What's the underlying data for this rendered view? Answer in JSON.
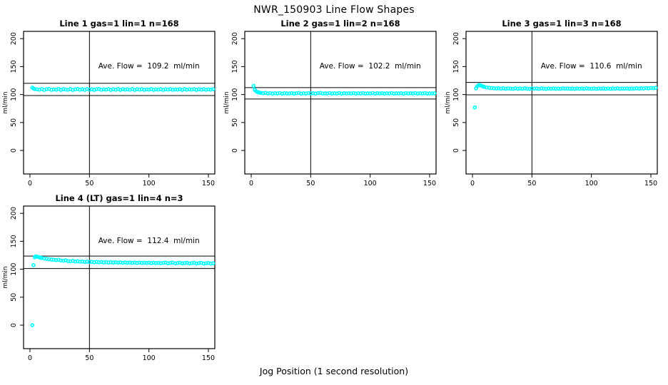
{
  "main": {
    "title": "NWR_150903  Line Flow Shapes",
    "xlabel": "Jog Position (1 second resolution)"
  },
  "style": {
    "point_color": "#00ffff",
    "axis_color": "#000000",
    "background": "#ffffff"
  },
  "chart_data": [
    {
      "type": "scatter",
      "title": "Line 1 gas=1 lin=1 n=168",
      "annotation": "Ave. Flow =  109.2  ml/min",
      "ave_flow": 109.2,
      "gas": 1,
      "lin": 1,
      "n": 168,
      "ylabel": "ml/min",
      "x_ticks": [
        0,
        50,
        100,
        150
      ],
      "y_ticks": [
        0,
        50,
        100,
        150,
        200
      ],
      "xlim": [
        -5.4,
        155.4
      ],
      "ylim": [
        -42,
        213
      ],
      "vline_x": 50,
      "hlines": [
        120.1,
        98.3
      ],
      "grid": false,
      "points": [
        [
          2,
          112.5
        ],
        [
          3,
          110.6
        ],
        [
          4,
          109.8
        ],
        [
          6,
          109.4
        ],
        [
          8,
          108.7
        ],
        [
          10,
          109.9
        ],
        [
          12,
          108.3
        ],
        [
          14,
          109.5
        ],
        [
          16,
          110.1
        ],
        [
          18,
          108.5
        ],
        [
          20,
          109.2
        ],
        [
          22,
          108.8
        ],
        [
          24,
          110.0
        ],
        [
          26,
          108.4
        ],
        [
          28,
          109.6
        ],
        [
          30,
          109.0
        ],
        [
          32,
          108.6
        ],
        [
          34,
          109.8
        ],
        [
          36,
          108.3
        ],
        [
          38,
          109.3
        ],
        [
          40,
          110.0
        ],
        [
          42,
          108.7
        ],
        [
          44,
          109.5
        ],
        [
          46,
          108.4
        ],
        [
          48,
          109.9
        ],
        [
          50,
          108.8
        ],
        [
          52,
          109.3
        ],
        [
          54,
          108.5
        ],
        [
          56,
          109.7
        ],
        [
          58,
          110.0
        ],
        [
          60,
          108.6
        ],
        [
          62,
          109.2
        ],
        [
          64,
          108.9
        ],
        [
          66,
          109.8
        ],
        [
          68,
          108.4
        ],
        [
          70,
          109.4
        ],
        [
          72,
          108.7
        ],
        [
          74,
          110.0
        ],
        [
          76,
          108.5
        ],
        [
          78,
          109.6
        ],
        [
          80,
          108.9
        ],
        [
          82,
          109.3
        ],
        [
          84,
          108.6
        ],
        [
          86,
          109.9
        ],
        [
          88,
          108.4
        ],
        [
          90,
          109.5
        ],
        [
          92,
          108.8
        ],
        [
          94,
          109.7
        ],
        [
          96,
          108.5
        ],
        [
          98,
          109.2
        ],
        [
          100,
          108.9
        ],
        [
          102,
          109.8
        ],
        [
          104,
          108.4
        ],
        [
          106,
          109.4
        ],
        [
          108,
          108.8
        ],
        [
          110,
          109.6
        ],
        [
          112,
          108.5
        ],
        [
          114,
          109.3
        ],
        [
          116,
          108.9
        ],
        [
          118,
          109.7
        ],
        [
          120,
          108.6
        ],
        [
          122,
          109.2
        ],
        [
          124,
          108.8
        ],
        [
          126,
          109.5
        ],
        [
          128,
          108.4
        ],
        [
          130,
          109.8
        ],
        [
          132,
          108.7
        ],
        [
          134,
          109.3
        ],
        [
          136,
          108.9
        ],
        [
          138,
          109.6
        ],
        [
          140,
          108.5
        ],
        [
          142,
          109.4
        ],
        [
          144,
          108.8
        ],
        [
          146,
          109.7
        ],
        [
          148,
          108.6
        ],
        [
          150,
          109.2
        ],
        [
          152,
          108.9
        ],
        [
          154,
          109.5
        ]
      ]
    },
    {
      "type": "scatter",
      "title": "Line 2 gas=1 lin=2 n=168",
      "annotation": "Ave. Flow =  102.2  ml/min",
      "ave_flow": 102.2,
      "gas": 1,
      "lin": 2,
      "n": 168,
      "ylabel": "ml/min",
      "x_ticks": [
        0,
        50,
        100,
        150
      ],
      "y_ticks": [
        0,
        50,
        100,
        150,
        200
      ],
      "xlim": [
        -5.4,
        155.4
      ],
      "ylim": [
        -42,
        213
      ],
      "vline_x": 50,
      "hlines": [
        112.4,
        92.0
      ],
      "grid": false,
      "points": [
        [
          2,
          115.5
        ],
        [
          3,
          108.6
        ],
        [
          4,
          106.2
        ],
        [
          5,
          104.9
        ],
        [
          6,
          104.0
        ],
        [
          7,
          103.4
        ],
        [
          8,
          103.0
        ],
        [
          10,
          102.6
        ],
        [
          12,
          102.9
        ],
        [
          14,
          102.1
        ],
        [
          16,
          102.7
        ],
        [
          18,
          101.8
        ],
        [
          20,
          102.4
        ],
        [
          22,
          102.0
        ],
        [
          24,
          102.8
        ],
        [
          26,
          101.7
        ],
        [
          28,
          102.5
        ],
        [
          30,
          102.1
        ],
        [
          32,
          101.9
        ],
        [
          34,
          102.6
        ],
        [
          36,
          101.8
        ],
        [
          38,
          102.3
        ],
        [
          40,
          102.9
        ],
        [
          42,
          101.7
        ],
        [
          44,
          102.4
        ],
        [
          46,
          101.9
        ],
        [
          48,
          102.7
        ],
        [
          50,
          102.0
        ],
        [
          52,
          102.3
        ],
        [
          54,
          101.8
        ],
        [
          56,
          102.6
        ],
        [
          58,
          102.9
        ],
        [
          60,
          101.9
        ],
        [
          62,
          102.2
        ],
        [
          64,
          102.0
        ],
        [
          66,
          102.7
        ],
        [
          68,
          101.8
        ],
        [
          70,
          102.4
        ],
        [
          72,
          102.0
        ],
        [
          74,
          102.8
        ],
        [
          76,
          101.7
        ],
        [
          78,
          102.5
        ],
        [
          80,
          102.0
        ],
        [
          82,
          102.3
        ],
        [
          84,
          101.9
        ],
        [
          86,
          102.7
        ],
        [
          88,
          101.8
        ],
        [
          90,
          102.4
        ],
        [
          92,
          102.0
        ],
        [
          94,
          102.6
        ],
        [
          96,
          101.8
        ],
        [
          98,
          102.2
        ],
        [
          100,
          102.0
        ],
        [
          102,
          102.7
        ],
        [
          104,
          101.7
        ],
        [
          106,
          102.4
        ],
        [
          108,
          102.0
        ],
        [
          110,
          102.5
        ],
        [
          112,
          101.8
        ],
        [
          114,
          102.3
        ],
        [
          116,
          102.0
        ],
        [
          118,
          102.6
        ],
        [
          120,
          101.8
        ],
        [
          122,
          102.2
        ],
        [
          124,
          102.0
        ],
        [
          126,
          102.5
        ],
        [
          128,
          101.7
        ],
        [
          130,
          102.7
        ],
        [
          132,
          101.9
        ],
        [
          134,
          102.3
        ],
        [
          136,
          102.0
        ],
        [
          138,
          102.6
        ],
        [
          140,
          101.8
        ],
        [
          142,
          102.4
        ],
        [
          144,
          102.0
        ],
        [
          146,
          102.6
        ],
        [
          148,
          101.8
        ],
        [
          150,
          102.2
        ],
        [
          152,
          102.0
        ],
        [
          154,
          102.4
        ]
      ]
    },
    {
      "type": "scatter",
      "title": "Line 3 gas=1 lin=3 n=168",
      "annotation": "Ave. Flow =  110.6  ml/min",
      "ave_flow": 110.6,
      "gas": 1,
      "lin": 3,
      "n": 168,
      "ylabel": "ml/min",
      "x_ticks": [
        0,
        50,
        100,
        150
      ],
      "y_ticks": [
        0,
        50,
        100,
        150,
        200
      ],
      "xlim": [
        -5.4,
        155.4
      ],
      "ylim": [
        -42,
        213
      ],
      "vline_x": 50,
      "hlines": [
        121.7,
        99.5
      ],
      "grid": false,
      "points": [
        [
          2,
          77
        ],
        [
          3,
          111.2
        ],
        [
          4,
          114.6
        ],
        [
          5,
          116.6
        ],
        [
          6,
          117.0
        ],
        [
          7,
          116.3
        ],
        [
          8,
          115.4
        ],
        [
          9,
          114.5
        ],
        [
          10,
          113.7
        ],
        [
          12,
          112.8
        ],
        [
          14,
          112.2
        ],
        [
          16,
          111.7
        ],
        [
          18,
          111.3
        ],
        [
          20,
          111.0
        ],
        [
          22,
          111.4
        ],
        [
          24,
          110.6
        ],
        [
          26,
          111.2
        ],
        [
          28,
          110.4
        ],
        [
          30,
          111.0
        ],
        [
          32,
          110.7
        ],
        [
          34,
          110.3
        ],
        [
          36,
          111.1
        ],
        [
          38,
          110.5
        ],
        [
          40,
          110.9
        ],
        [
          42,
          110.4
        ],
        [
          44,
          111.2
        ],
        [
          46,
          110.6
        ],
        [
          48,
          110.3
        ],
        [
          50,
          111.0
        ],
        [
          52,
          110.5
        ],
        [
          54,
          110.8
        ],
        [
          56,
          110.3
        ],
        [
          58,
          111.1
        ],
        [
          60,
          110.6
        ],
        [
          62,
          110.2
        ],
        [
          64,
          110.9
        ],
        [
          66,
          110.5
        ],
        [
          68,
          111.0
        ],
        [
          70,
          110.4
        ],
        [
          72,
          110.8
        ],
        [
          74,
          110.3
        ],
        [
          76,
          111.1
        ],
        [
          78,
          110.6
        ],
        [
          80,
          110.9
        ],
        [
          82,
          110.4
        ],
        [
          84,
          110.7
        ],
        [
          86,
          110.2
        ],
        [
          88,
          111.0
        ],
        [
          90,
          110.5
        ],
        [
          92,
          110.8
        ],
        [
          94,
          110.3
        ],
        [
          96,
          111.1
        ],
        [
          98,
          110.6
        ],
        [
          100,
          110.4
        ],
        [
          102,
          110.9
        ],
        [
          104,
          110.3
        ],
        [
          106,
          110.7
        ],
        [
          108,
          110.5
        ],
        [
          110,
          111.0
        ],
        [
          112,
          110.4
        ],
        [
          114,
          110.8
        ],
        [
          116,
          110.3
        ],
        [
          118,
          110.9
        ],
        [
          120,
          110.5
        ],
        [
          122,
          111.1
        ],
        [
          124,
          110.4
        ],
        [
          126,
          110.8
        ],
        [
          128,
          110.6
        ],
        [
          130,
          111.0
        ],
        [
          132,
          110.4
        ],
        [
          134,
          110.9
        ],
        [
          136,
          110.6
        ],
        [
          138,
          111.2
        ],
        [
          140,
          110.7
        ],
        [
          142,
          111.3
        ],
        [
          144,
          110.9
        ],
        [
          146,
          111.6
        ],
        [
          148,
          111.2
        ],
        [
          150,
          111.8
        ],
        [
          152,
          111.4
        ],
        [
          154,
          112.0
        ]
      ]
    },
    {
      "type": "scatter",
      "title": "Line 4 (LT) gas=1 lin=4 n=3",
      "annotation": "Ave. Flow =  112.4  ml/min",
      "ave_flow": 112.4,
      "gas": 1,
      "lin": 4,
      "n": 3,
      "ylabel": "ml/min",
      "x_ticks": [
        0,
        50,
        100,
        150
      ],
      "y_ticks": [
        0,
        50,
        100,
        150,
        200
      ],
      "xlim": [
        -5.4,
        155.4
      ],
      "ylim": [
        -42,
        213
      ],
      "vline_x": 50,
      "hlines": [
        123.6,
        101.2
      ],
      "grid": false,
      "points": [
        [
          2,
          0
        ],
        [
          3,
          107.5
        ],
        [
          4,
          121.5
        ],
        [
          5,
          123.0
        ],
        [
          6,
          122.4
        ],
        [
          7,
          121.8
        ],
        [
          8,
          121.2
        ],
        [
          9,
          120.7
        ],
        [
          10,
          120.2
        ],
        [
          12,
          119.3
        ],
        [
          14,
          118.6
        ],
        [
          16,
          118.0
        ],
        [
          18,
          117.4
        ],
        [
          20,
          116.9
        ],
        [
          22,
          116.4
        ],
        [
          24,
          116.8
        ],
        [
          26,
          115.6
        ],
        [
          28,
          115.2
        ],
        [
          30,
          115.8
        ],
        [
          32,
          114.6
        ],
        [
          34,
          114.2
        ],
        [
          36,
          114.9
        ],
        [
          38,
          113.8
        ],
        [
          40,
          114.4
        ],
        [
          42,
          113.3
        ],
        [
          44,
          113.9
        ],
        [
          46,
          113.0
        ],
        [
          48,
          113.6
        ],
        [
          50,
          112.8
        ],
        [
          52,
          113.4
        ],
        [
          54,
          112.5
        ],
        [
          56,
          113.2
        ],
        [
          58,
          112.3
        ],
        [
          60,
          113.0
        ],
        [
          62,
          112.1
        ],
        [
          64,
          112.8
        ],
        [
          66,
          112.0
        ],
        [
          68,
          112.7
        ],
        [
          70,
          111.8
        ],
        [
          72,
          112.5
        ],
        [
          74,
          111.7
        ],
        [
          76,
          112.4
        ],
        [
          78,
          111.6
        ],
        [
          80,
          112.2
        ],
        [
          82,
          111.5
        ],
        [
          84,
          112.1
        ],
        [
          86,
          111.4
        ],
        [
          88,
          112.0
        ],
        [
          90,
          111.3
        ],
        [
          92,
          111.9
        ],
        [
          94,
          111.2
        ],
        [
          96,
          111.8
        ],
        [
          98,
          111.1
        ],
        [
          100,
          111.7
        ],
        [
          102,
          111.0
        ],
        [
          104,
          111.6
        ],
        [
          106,
          110.9
        ],
        [
          108,
          111.5
        ],
        [
          110,
          110.8
        ],
        [
          112,
          111.4
        ],
        [
          114,
          111.9
        ],
        [
          116,
          110.7
        ],
        [
          118,
          111.3
        ],
        [
          120,
          111.8
        ],
        [
          122,
          110.6
        ],
        [
          124,
          111.2
        ],
        [
          126,
          111.7
        ],
        [
          128,
          110.5
        ],
        [
          130,
          111.1
        ],
        [
          132,
          111.6
        ],
        [
          134,
          110.4
        ],
        [
          136,
          111.0
        ],
        [
          138,
          111.5
        ],
        [
          140,
          110.3
        ],
        [
          142,
          110.9
        ],
        [
          144,
          111.4
        ],
        [
          146,
          110.2
        ],
        [
          148,
          110.8
        ],
        [
          150,
          111.3
        ],
        [
          152,
          110.1
        ],
        [
          154,
          110.7
        ]
      ]
    }
  ]
}
